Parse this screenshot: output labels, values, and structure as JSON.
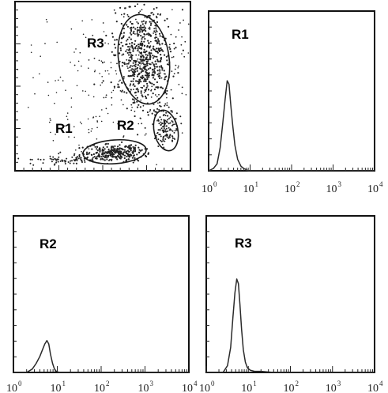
{
  "chart_data": [
    {
      "panel": "top-left",
      "type": "scatter",
      "grid": false,
      "gates": [
        {
          "name": "R1",
          "label": "R1"
        },
        {
          "name": "R2",
          "label": "R2"
        },
        {
          "name": "R3",
          "label": "R3"
        }
      ]
    },
    {
      "panel": "top-right",
      "type": "line",
      "title": "R1",
      "xscale": "log",
      "xlim": [
        1,
        10000
      ],
      "x_tick_values": [
        1,
        10,
        100,
        1000,
        10000
      ],
      "x_tick_labels": [
        {
          "base": "10",
          "exp": "0"
        },
        {
          "base": "10",
          "exp": "1"
        },
        {
          "base": "10",
          "exp": "2"
        },
        {
          "base": "10",
          "exp": "3"
        },
        {
          "base": "10",
          "exp": "4"
        }
      ],
      "ylim": [
        0,
        100
      ],
      "series": [
        {
          "x": [
            1.3,
            1.6,
            1.9,
            2.2,
            2.5,
            2.8,
            3.1,
            3.4,
            3.8,
            4.3,
            5.0,
            6.0,
            7.0,
            8.0,
            9.0
          ],
          "y": [
            2,
            6,
            20,
            42,
            62,
            78,
            75,
            58,
            40,
            22,
            10,
            4,
            2,
            1,
            0
          ]
        }
      ]
    },
    {
      "panel": "bottom-left",
      "type": "line",
      "title": "R2",
      "xscale": "log",
      "xlim": [
        1,
        10000
      ],
      "x_tick_values": [
        1,
        10,
        100,
        1000,
        10000
      ],
      "x_tick_labels": [
        {
          "base": "10",
          "exp": "0"
        },
        {
          "base": "10",
          "exp": "1"
        },
        {
          "base": "10",
          "exp": "2"
        },
        {
          "base": "10",
          "exp": "3"
        },
        {
          "base": "10",
          "exp": "4"
        }
      ],
      "ylim": [
        0,
        100
      ],
      "series": [
        {
          "x": [
            2.0,
            2.7,
            3.3,
            4.0,
            4.6,
            5.2,
            5.8,
            6.4,
            7.0,
            7.8,
            8.6,
            9.5,
            11,
            13
          ],
          "y": [
            0,
            3,
            8,
            14,
            20,
            25,
            28,
            25,
            16,
            8,
            3,
            1,
            0,
            0
          ]
        }
      ]
    },
    {
      "panel": "bottom-right",
      "type": "line",
      "title": "R3",
      "xscale": "log",
      "xlim": [
        1,
        10000
      ],
      "x_tick_values": [
        1,
        10,
        100,
        1000,
        10000
      ],
      "x_tick_labels": [
        {
          "base": "10",
          "exp": "0"
        },
        {
          "base": "10",
          "exp": "1"
        },
        {
          "base": "10",
          "exp": "2"
        },
        {
          "base": "10",
          "exp": "3"
        },
        {
          "base": "10",
          "exp": "4"
        }
      ],
      "ylim": [
        0,
        100
      ],
      "series": [
        {
          "x": [
            2.5,
            3.2,
            3.8,
            4.3,
            4.8,
            5.3,
            5.8,
            6.3,
            6.9,
            7.6,
            8.5,
            9.5,
            11,
            14,
            20,
            40
          ],
          "y": [
            0,
            6,
            22,
            48,
            70,
            82,
            78,
            60,
            38,
            20,
            9,
            4,
            2,
            1,
            1,
            0
          ]
        }
      ]
    }
  ]
}
